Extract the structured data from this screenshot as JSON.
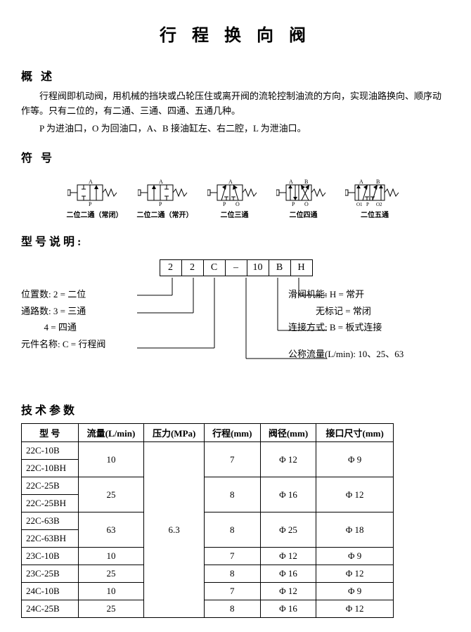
{
  "title": "行 程 换 向 阀",
  "section_overview": "概 述",
  "overview_p1": "行程阀即机动阀，用机械的挡块或凸轮压住或离开阀的流轮控制油流的方向，实现油路换向、顺序动作等。只有二位的，有二通、三通、四通、五通几种。",
  "overview_p2": "P 为进油口，O 为回油口，A、B 接油缸左、右二腔，L 为泄油口。",
  "section_symbol": "符 号",
  "symbols": [
    {
      "label": "二位二通（常闭）"
    },
    {
      "label": "二位二通（常开）"
    },
    {
      "label": "二位三通"
    },
    {
      "label": "二位四通"
    },
    {
      "label": "二位五通"
    }
  ],
  "section_model": "型号说明:",
  "model_boxes": [
    "2",
    "2",
    "C",
    "–",
    "10",
    "B",
    "H"
  ],
  "model_left": {
    "l1": "位置数:  2 = 二位",
    "l2": "通路数:  3 = 三通",
    "l3": "          4 = 四通",
    "l4": "元件名称:  C = 行程阀"
  },
  "model_right": {
    "r1": "滑阀机能:  H = 常开",
    "r2": "            无标记 = 常闭",
    "r3": "连接方式:  B = 板式连接",
    "r4": "公称流量(L/min):  10、25、63"
  },
  "section_spec": "技术参数",
  "spec_headers": [
    "型 号",
    "流量(L/min)",
    "压力(MPa)",
    "行程(mm)",
    "阀径(mm)",
    "接口尺寸(mm)"
  ],
  "spec_rows": [
    {
      "model": "22C-10B",
      "flow": "",
      "pressure": "",
      "stroke": "",
      "bore": "",
      "port": ""
    },
    {
      "model": "22C-10BH",
      "flow": "10",
      "pressure": "",
      "stroke": "7",
      "bore": "Φ 12",
      "port": "Φ 9"
    },
    {
      "model": "22C-25B",
      "flow": "",
      "pressure": "",
      "stroke": "",
      "bore": "",
      "port": ""
    },
    {
      "model": "22C-25BH",
      "flow": "25",
      "pressure": "",
      "stroke": "8",
      "bore": "Φ 16",
      "port": "Φ 12"
    },
    {
      "model": "22C-63B",
      "flow": "",
      "pressure": "",
      "stroke": "",
      "bore": "",
      "port": ""
    },
    {
      "model": "22C-63BH",
      "flow": "63",
      "pressure": "6.3",
      "stroke": "8",
      "bore": "Φ 25",
      "port": "Φ 18"
    },
    {
      "model": "23C-10B",
      "flow": "10",
      "pressure": "",
      "stroke": "7",
      "bore": "Φ 12",
      "port": "Φ 9"
    },
    {
      "model": "23C-25B",
      "flow": "25",
      "pressure": "",
      "stroke": "8",
      "bore": "Φ 16",
      "port": "Φ 12"
    },
    {
      "model": "24C-10B",
      "flow": "10",
      "pressure": "",
      "stroke": "7",
      "bore": "Φ 12",
      "port": "Φ 9"
    },
    {
      "model": "24C-25B",
      "flow": "25",
      "pressure": "",
      "stroke": "8",
      "bore": "Φ 16",
      "port": "Φ 12"
    }
  ],
  "colors": {
    "line": "#000000",
    "bg": "#ffffff"
  }
}
